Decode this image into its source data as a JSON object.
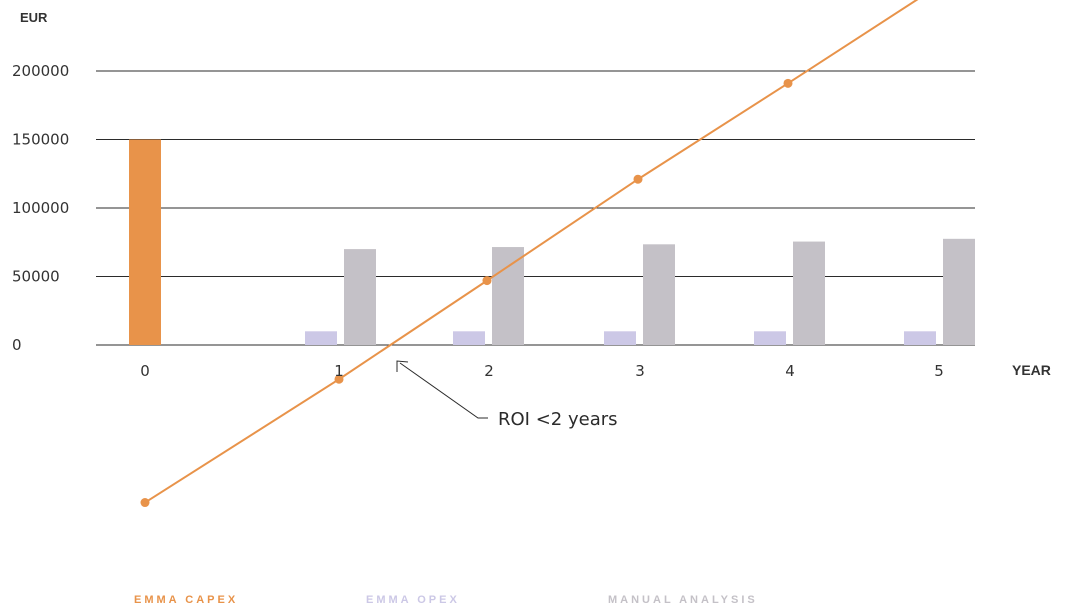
{
  "chart_data": {
    "type": "bar",
    "categories": [
      "0",
      "1",
      "2",
      "3",
      "4",
      "5"
    ],
    "series": [
      {
        "name": "EMMA CAPEX",
        "type": "bar",
        "values": [
          150000,
          0,
          0,
          0,
          0,
          0
        ]
      },
      {
        "name": "EMMA OPEX",
        "type": "bar",
        "values": [
          0,
          10000,
          10000,
          10000,
          10000,
          10000
        ]
      },
      {
        "name": "MANUAL ANALYSIS",
        "type": "bar",
        "values": [
          0,
          70000,
          71500,
          73500,
          75500,
          77500
        ]
      },
      {
        "name": "",
        "type": "line",
        "values": [
          -115000,
          -25000,
          47000,
          121000,
          191000,
          262000
        ]
      }
    ],
    "ylabel": "EUR",
    "xlabel": "YEAR",
    "ylim": [
      0,
      200000
    ],
    "yticks": [
      "0",
      "50000",
      "100000",
      "150000",
      "200000"
    ],
    "xticks": [
      "0",
      "1",
      "2",
      "3",
      "4",
      "5"
    ],
    "grid": true,
    "annotation": {
      "text": "ROI <2 years",
      "points_to_x": 1.4
    }
  },
  "legend": {
    "capex": "EMMA CAPEX",
    "opex": "EMMA OPEX",
    "manual": "MANUAL ANALYSIS"
  },
  "colors": {
    "capex": "#E8934A",
    "opex": "#CCC8E6",
    "manual": "#C4C1C7",
    "line": "#E8934A",
    "grid": "#2b2b2b",
    "text": "#333333",
    "annotation": "#2b2b2b"
  }
}
